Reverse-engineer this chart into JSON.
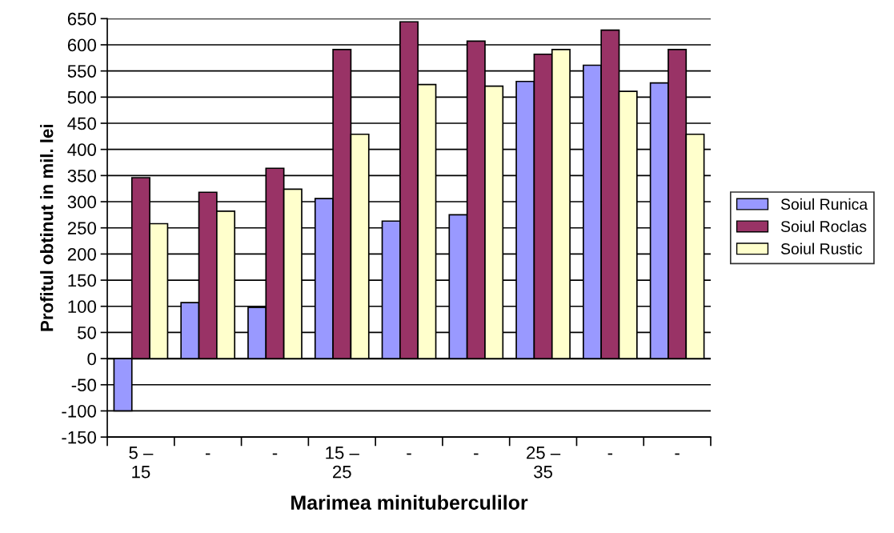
{
  "chart_data": {
    "type": "bar",
    "xlabel": "Marimea minituberculilor",
    "ylabel": "Profitul obtinut in mil. lei",
    "categories": [
      "5 –\n15",
      "-",
      "-",
      "15 –\n25",
      "-",
      "-",
      "25 –\n35",
      "-",
      "-"
    ],
    "series": [
      {
        "name": "Soiul Runica",
        "color": "#9999ff",
        "values": [
          -100,
          107,
          98,
          306,
          263,
          275,
          530,
          561,
          527
        ]
      },
      {
        "name": "Soiul Roclas",
        "color": "#993366",
        "values": [
          346,
          318,
          364,
          591,
          644,
          607,
          582,
          628,
          591
        ]
      },
      {
        "name": "Soiul Rustic",
        "color": "#ffffcc",
        "values": [
          258,
          282,
          324,
          429,
          524,
          521,
          591,
          511,
          429
        ]
      }
    ],
    "ylim": [
      -150,
      650
    ],
    "yticks": [
      -150,
      -100,
      -50,
      0,
      50,
      100,
      150,
      200,
      250,
      300,
      350,
      400,
      450,
      500,
      550,
      600,
      650
    ],
    "grid": "y",
    "legend": "right"
  }
}
